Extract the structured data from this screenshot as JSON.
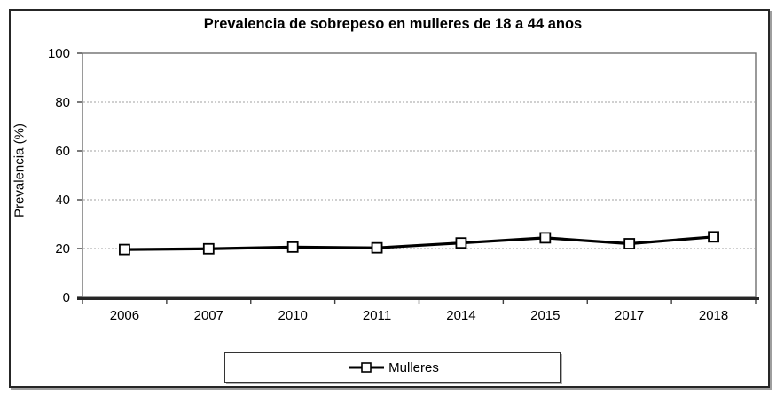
{
  "figure": {
    "title": "Prevalencia de sobrepeso en mulleres de 18 a 44 anos"
  },
  "chart_data": {
    "type": "line",
    "title": "Prevalencia de sobrepeso en mulleres de 18 a 44 anos",
    "categories": [
      "2006",
      "2007",
      "2010",
      "2011",
      "2014",
      "2015",
      "2017",
      "2018"
    ],
    "series": [
      {
        "name": "Mulleres",
        "marker": "open-square",
        "values": [
          19.6,
          19.9,
          20.6,
          20.3,
          22.3,
          24.4,
          22.0,
          24.8
        ]
      }
    ],
    "xlabel": "",
    "ylabel": "Prevalencia (%)",
    "ylim": [
      0,
      100
    ],
    "yticks": [
      0,
      20,
      40,
      60,
      80,
      100
    ],
    "grid": "horizontal-dotted",
    "legend_position": "bottom-center",
    "colors": {
      "series": "#000000",
      "marker_fill": "#ffffff",
      "grid": "#a0a0a0",
      "plot_border": "#6e6e6e",
      "axis": "#404040",
      "frame": "#262626",
      "text": "#000000",
      "background": "#ffffff"
    }
  },
  "legend": {
    "items": [
      {
        "label": "Mulleres",
        "marker": "line-with-open-square"
      }
    ]
  }
}
